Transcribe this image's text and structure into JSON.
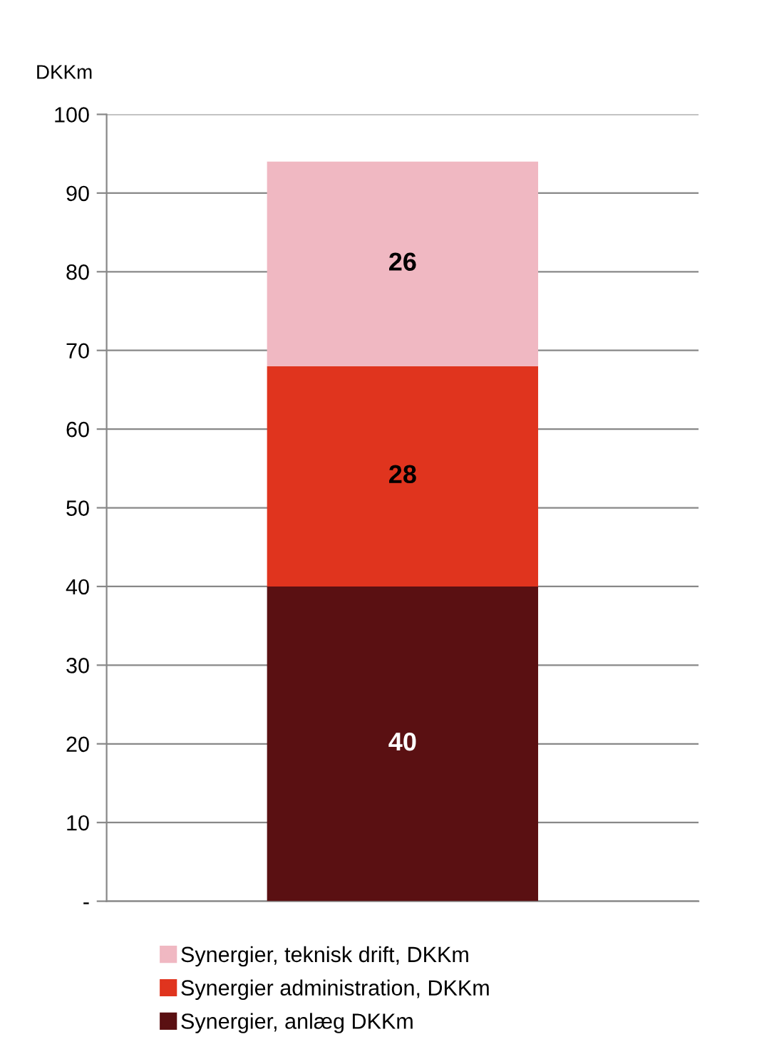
{
  "chart_data": {
    "type": "bar",
    "stacked": true,
    "ylabel": "DKKm",
    "categories": [
      null
    ],
    "series": [
      {
        "name": "Synergier, anlæg DKKm",
        "color": "#5a1012",
        "values": [
          40
        ]
      },
      {
        "name": "Synergier administration, DKKm",
        "color": "#e0341e",
        "values": [
          28
        ]
      },
      {
        "name": "Synergier, teknisk drift, DKKm",
        "color": "#f0b8c2",
        "values": [
          26
        ]
      }
    ],
    "ylim": [
      0,
      100
    ],
    "yticks": [
      {
        "value": 0,
        "label": "-"
      },
      10,
      20,
      30,
      40,
      50,
      60,
      70,
      80,
      90,
      100
    ],
    "grid": "y",
    "legend": "bottom",
    "data_labels": true
  }
}
